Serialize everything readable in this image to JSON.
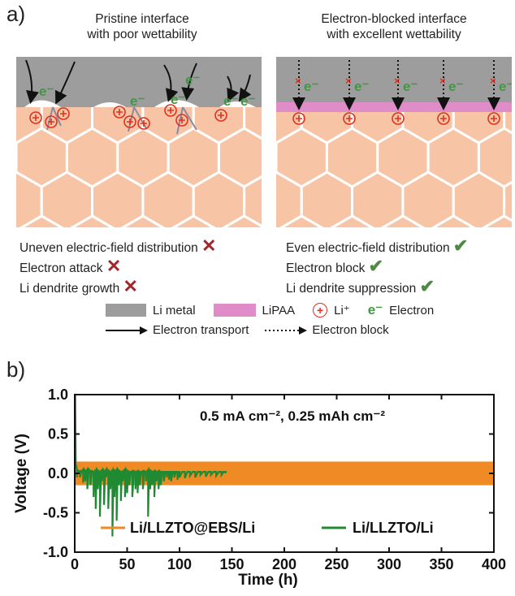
{
  "panel_a": {
    "label": "a)",
    "left": {
      "title_line1": "Pristine interface",
      "title_line2": "with poor wettability",
      "captions": [
        {
          "text": "Uneven electric-field distribution",
          "mark": "cross"
        },
        {
          "text": "Electron attack",
          "mark": "cross"
        },
        {
          "text": "Li dendrite growth",
          "mark": "cross"
        }
      ],
      "electron_label": "e⁻"
    },
    "right": {
      "title_line1": "Electron-blocked interface",
      "title_line2": "with excellent wettability",
      "captions": [
        {
          "text": "Even electric-field distribution",
          "mark": "check"
        },
        {
          "text": "Electron block",
          "mark": "check"
        },
        {
          "text": "Li dendrite suppression",
          "mark": "check"
        }
      ],
      "electron_label": "e⁻"
    },
    "legend": {
      "li_metal": "Li metal",
      "lipaa": "LiPAA",
      "li_ion": "Li⁺",
      "electron_symbol": "e⁻",
      "electron": "Electron",
      "electron_transport": "Electron transport",
      "electron_block": "Electron block"
    },
    "colors": {
      "li_metal": "#9d9d9d",
      "lipaa": "#e08cc8",
      "ceramic": "#f7c4a6",
      "li_ion": "#e0301e",
      "electron": "#3f9a3f",
      "cross": "#a3262c",
      "check": "#4e8a43"
    }
  },
  "panel_b": {
    "label": "b)"
  },
  "chart_data": {
    "type": "line",
    "annotation": "0.5 mA cm⁻², 0.25 mAh cm⁻²",
    "xlabel": "Time (h)",
    "ylabel": "Voltage (V)",
    "xlim": [
      0,
      400
    ],
    "ylim": [
      -1.0,
      1.0
    ],
    "xticks": [
      0,
      50,
      100,
      150,
      200,
      250,
      300,
      350,
      400
    ],
    "yticks": [
      1.0,
      0.5,
      0.0,
      -0.5,
      -1.0
    ],
    "ytick_labels": [
      "1.0",
      "0.5",
      "0.0",
      "-0.5",
      "-1.0"
    ],
    "legend_placement": "bottom",
    "series": [
      {
        "name": "Li/LLZTO@EBS/Li",
        "color": "#f08a24",
        "band": {
          "x": [
            0,
            400
          ],
          "upper": 0.15,
          "lower": -0.15
        }
      },
      {
        "name": "Li/LLZTO/Li",
        "color": "#1f8a32",
        "x": [
          0,
          1,
          2,
          3,
          5,
          8,
          10,
          12,
          15,
          18,
          20,
          22,
          24,
          26,
          28,
          30,
          32,
          34,
          36,
          38,
          40,
          42,
          44,
          46,
          48,
          50,
          52,
          55,
          58,
          60,
          62,
          65,
          68,
          70,
          72,
          74,
          76,
          78,
          80,
          82,
          85,
          88,
          90,
          92,
          95,
          98,
          100,
          105,
          110,
          115,
          120,
          125,
          130,
          135,
          140,
          144
        ],
        "y": [
          1.0,
          0.1,
          -0.05,
          0.0,
          -0.05,
          -0.12,
          -0.1,
          -0.2,
          -0.15,
          -0.3,
          -0.45,
          -0.2,
          -0.55,
          -0.1,
          -0.4,
          -0.05,
          -0.45,
          -0.2,
          -0.8,
          -0.3,
          -0.6,
          -0.15,
          -0.35,
          -0.1,
          -0.3,
          -0.25,
          -0.15,
          -0.3,
          -0.2,
          -0.25,
          -0.15,
          -0.2,
          -0.1,
          -0.55,
          -0.2,
          -0.15,
          -0.3,
          -0.1,
          -0.2,
          -0.15,
          -0.1,
          -0.05,
          -0.08,
          -0.1,
          -0.05,
          -0.08,
          -0.05,
          -0.06,
          -0.03,
          -0.05,
          -0.02,
          -0.04,
          -0.02,
          -0.03,
          -0.02,
          0.0
        ],
        "band_upper": [
          1.0,
          0.1,
          0.05,
          0.03,
          0.03,
          0.05,
          0.03,
          0.05,
          0.03,
          0.02,
          0.05,
          0.03,
          0.02,
          0.05,
          0.03,
          0.05,
          0.03,
          0.02,
          0.05,
          0.03,
          0.05,
          0.03,
          0.02,
          0.03,
          0.05,
          0.03,
          0.02,
          0.03,
          0.02,
          0.03,
          0.02,
          0.03,
          0.02,
          0.05,
          0.03,
          0.02,
          0.03,
          0.02,
          0.03,
          0.02,
          0.02,
          0.02,
          0.02,
          0.02,
          0.02,
          0.02,
          0.02,
          0.02,
          0.02,
          0.02,
          0.02,
          0.02,
          0.02,
          0.02,
          0.02,
          0.02
        ]
      }
    ]
  }
}
